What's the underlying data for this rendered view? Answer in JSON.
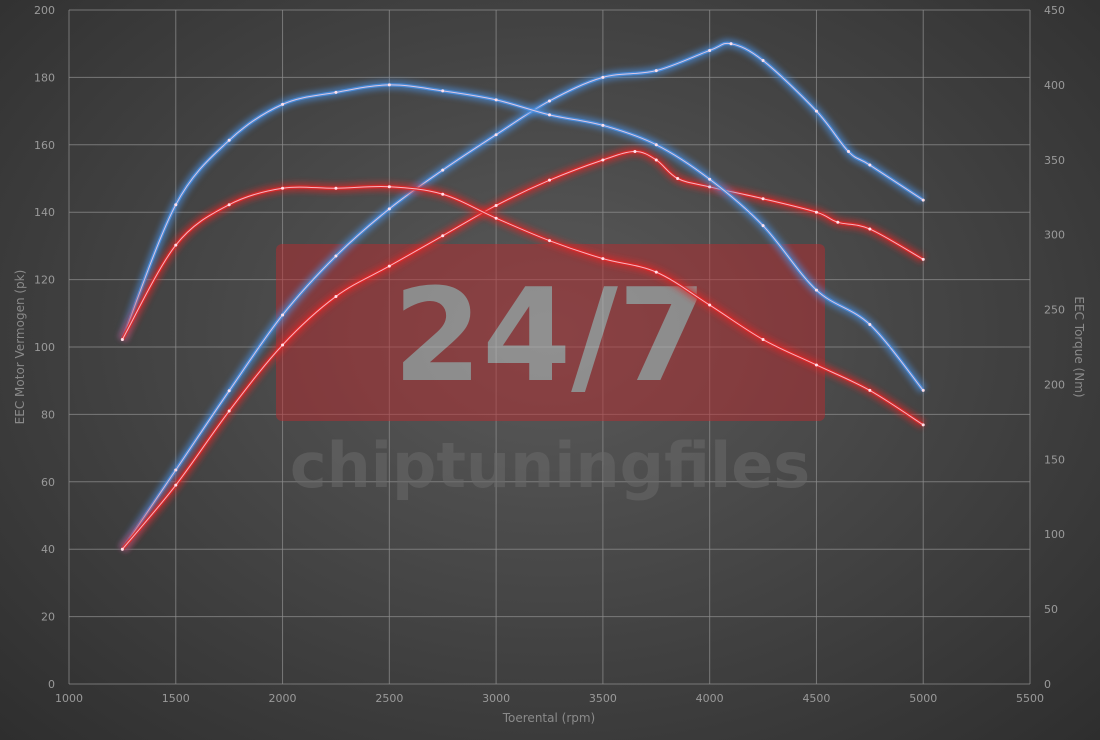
{
  "chart_data": {
    "type": "line",
    "xlabel": "Toerental (rpm)",
    "ylabel": "EEC Motor Vermogen (pk)",
    "y2label": "EEC Torque (Nm)",
    "xlim": [
      1000,
      5500
    ],
    "ylim": [
      0,
      200
    ],
    "y2lim": [
      0,
      450
    ],
    "xticks": [
      1000,
      1500,
      2000,
      2500,
      3000,
      3500,
      4000,
      4500,
      5000,
      5500
    ],
    "yticks": [
      0,
      20,
      40,
      60,
      80,
      100,
      120,
      140,
      160,
      180,
      200
    ],
    "y2ticks": [
      0,
      50,
      100,
      150,
      200,
      250,
      300,
      350,
      400,
      450
    ],
    "grid": true,
    "series": [
      {
        "axis": "left",
        "color": "#4a90e2",
        "x": [
          1250,
          1500,
          1750,
          2000,
          2250,
          2500,
          2750,
          3000,
          3250,
          3500,
          3750,
          4000,
          4100,
          4250,
          4500,
          4650,
          4750,
          5000
        ],
        "values": [
          40,
          63.5,
          87,
          109.5,
          127,
          141,
          152.5,
          163,
          173,
          180,
          182,
          188,
          190,
          185,
          170,
          158,
          154,
          143.6
        ]
      },
      {
        "axis": "left",
        "color": "#e02828",
        "x": [
          1250,
          1500,
          1750,
          2000,
          2250,
          2500,
          2750,
          3000,
          3250,
          3500,
          3650,
          3750,
          3850,
          4000,
          4250,
          4500,
          4600,
          4750,
          5000
        ],
        "values": [
          40,
          59,
          81,
          100.6,
          115,
          124,
          133,
          142,
          149.5,
          155.5,
          158,
          155.5,
          150,
          147.5,
          144,
          140,
          137,
          135,
          126
        ]
      },
      {
        "axis": "right",
        "color": "#4a90e2",
        "x": [
          1250,
          1500,
          1750,
          2000,
          2250,
          2500,
          2750,
          3000,
          3250,
          3500,
          3750,
          4000,
          4250,
          4500,
          4750,
          5000
        ],
        "values": [
          230,
          320,
          363,
          387,
          395,
          400,
          396,
          390,
          380,
          373,
          360,
          337,
          306,
          263,
          240,
          196
        ]
      },
      {
        "axis": "right",
        "color": "#e02828",
        "x": [
          1250,
          1500,
          1750,
          2000,
          2250,
          2500,
          2750,
          3000,
          3250,
          3500,
          3750,
          4000,
          4250,
          4500,
          4750,
          5000
        ],
        "values": [
          230,
          293,
          320,
          331,
          331,
          332,
          327,
          311,
          296,
          284,
          275,
          253,
          230,
          213,
          196,
          173
        ]
      }
    ]
  },
  "watermark": {
    "logo_text": "24/7",
    "brand_text": "chiptuningfiles",
    "color": "#c0282d"
  }
}
